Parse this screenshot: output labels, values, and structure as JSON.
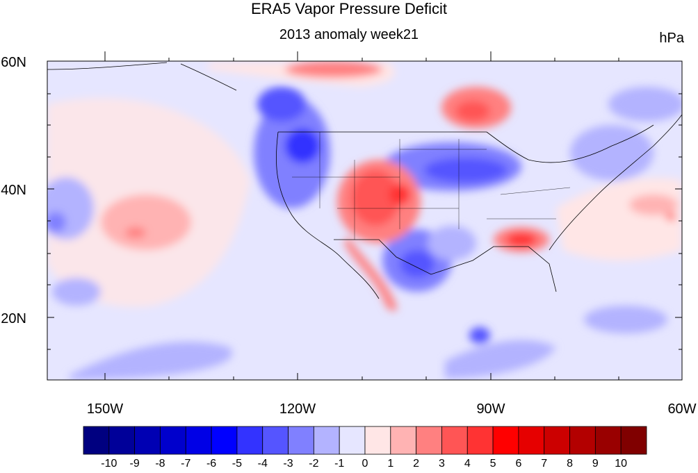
{
  "map": {
    "title": "ERA5 Vapor Pressure Deficit",
    "subtitle": "2013 anomaly week21",
    "units": "hPa",
    "lat_labels": [
      "60N",
      "40N",
      "20N"
    ],
    "lon_labels": [
      "150W",
      "120W",
      "90W",
      "60W"
    ],
    "colorbar": {
      "labels": [
        "-10",
        "-9",
        "-8",
        "-7",
        "-6",
        "-5",
        "-4",
        "-3",
        "-2",
        "-1",
        "0",
        "1",
        "2",
        "3",
        "4",
        "5",
        "6",
        "7",
        "8",
        "9",
        "10"
      ],
      "colors": [
        "#000080",
        "#000099",
        "#0000b3",
        "#0000cc",
        "#0000e6",
        "#0000ff",
        "#3333ff",
        "#5555ff",
        "#8080ff",
        "#b3b3ff",
        "#e6e6ff",
        "#ffe6e6",
        "#ffb3b3",
        "#ff8080",
        "#ff5555",
        "#ff3333",
        "#ff0000",
        "#e60000",
        "#cc0000",
        "#b30000",
        "#990000",
        "#800000"
      ]
    }
  }
}
